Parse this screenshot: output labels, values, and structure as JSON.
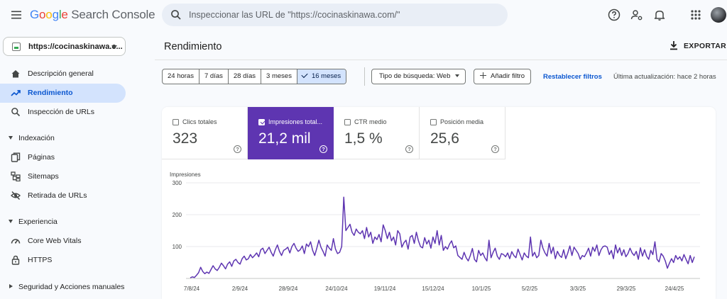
{
  "header": {
    "logo_google": [
      "G",
      "o",
      "o",
      "g",
      "l",
      "e"
    ],
    "logo_rest": " Search Console",
    "search_placeholder": "Inspeccionar las URL de \"https://cocinaskinawa.com/\"",
    "icons": [
      "menu-icon",
      "search-icon",
      "help-icon",
      "manage-users-icon",
      "notifications-icon",
      "apps-grid-icon",
      "avatar"
    ]
  },
  "sidebar": {
    "property": "https://cocinaskinawa.c...",
    "items": [
      {
        "label": "Descripción general",
        "icon": "home-icon",
        "active": false
      },
      {
        "label": "Rendimiento",
        "icon": "trending-icon",
        "active": true
      },
      {
        "label": "Inspección de URLs",
        "icon": "search-icon",
        "active": false
      }
    ],
    "sections": [
      {
        "label": "Indexación",
        "expanded": true,
        "items": [
          {
            "label": "Páginas",
            "icon": "pages-icon"
          },
          {
            "label": "Sitemaps",
            "icon": "sitemap-icon"
          },
          {
            "label": "Retirada de URLs",
            "icon": "eye-off-icon"
          }
        ]
      },
      {
        "label": "Experiencia",
        "expanded": true,
        "items": [
          {
            "label": "Core Web Vitals",
            "icon": "speed-gauge-icon"
          },
          {
            "label": "HTTPS",
            "icon": "lock-icon"
          }
        ]
      },
      {
        "label": "Seguridad y Acciones manuales",
        "expanded": false,
        "items": []
      }
    ]
  },
  "main": {
    "title": "Rendimiento",
    "export_label": "EXPORTAR",
    "date_ranges": [
      {
        "label": "24 horas",
        "selected": false
      },
      {
        "label": "7 días",
        "selected": false
      },
      {
        "label": "28 días",
        "selected": false
      },
      {
        "label": "3 meses",
        "selected": false
      },
      {
        "label": "16 meses",
        "selected": true
      }
    ],
    "search_type_chip": "Tipo de búsqueda: Web",
    "add_filter_chip": "Añadir filtro",
    "reset_filters": "Restablecer filtros",
    "last_update": "Última actualización: hace 2 horas",
    "metrics": [
      {
        "label": "Clics totales",
        "value": "323",
        "selected": false
      },
      {
        "label": "Impresiones total...",
        "value": "21,2 mil",
        "selected": true
      },
      {
        "label": "CTR medio",
        "value": "1,5 %",
        "selected": false
      },
      {
        "label": "Posición media",
        "value": "25,6",
        "selected": false
      }
    ],
    "help_glyph": "?"
  },
  "colors": {
    "accent": "#5e35b1",
    "nav_active_bg": "#d3e3fd",
    "link": "#0b57d0"
  },
  "chart_data": {
    "type": "line",
    "ylabel": "Impresiones",
    "ylim": [
      0,
      300
    ],
    "yticks": [
      0,
      100,
      200,
      300
    ],
    "ytick_labels": [
      "",
      "100",
      "200",
      "300"
    ],
    "xticks": [
      "7/8/24",
      "2/9/24",
      "28/9/24",
      "24/10/24",
      "19/11/24",
      "15/12/24",
      "10/1/25",
      "5/2/25",
      "3/3/25",
      "29/3/25",
      "24/4/25"
    ],
    "grid": true,
    "series": [
      {
        "color": "#5e35b1",
        "values": [
          2,
          5,
          3,
          10,
          18,
          35,
          22,
          15,
          20,
          16,
          28,
          40,
          30,
          25,
          35,
          48,
          40,
          30,
          45,
          52,
          38,
          55,
          60,
          50,
          45,
          62,
          70,
          58,
          62,
          75,
          65,
          72,
          80,
          68,
          90,
          95,
          78,
          88,
          98,
          82,
          70,
          90,
          105,
          85,
          72,
          88,
          92,
          98,
          80,
          100,
          110,
          95,
          85,
          90,
          102,
          78,
          108,
          100,
          115,
          88,
          72,
          95,
          120,
          98,
          85,
          70,
          105,
          95,
          88,
          125,
          92,
          78,
          82,
          100,
          255,
          150,
          160,
          170,
          145,
          135,
          155,
          145,
          140,
          150,
          125,
          160,
          130,
          145,
          110,
          130,
          122,
          138,
          115,
          168,
          150,
          125,
          145,
          118,
          130,
          105,
          150,
          140,
          98,
          112,
          120,
          92,
          130,
          135,
          110,
          145,
          118,
          100,
          96,
          128,
          108,
          120,
          95,
          130,
          110,
          150,
          105,
          135,
          88,
          100,
          92,
          108,
          118,
          96,
          102,
          72,
          66,
          60,
          82,
          65,
          55,
          72,
          94,
          60,
          52,
          88,
          72,
          80,
          65,
          55,
          120,
          65,
          82,
          95,
          70,
          60,
          78,
          75,
          68,
          80,
          62,
          84,
          72,
          65,
          92,
          75,
          58,
          80,
          70,
          65,
          130,
          70,
          82,
          65,
          72,
          120,
          95,
          80,
          70,
          110,
          78,
          98,
          62,
          85,
          72,
          66,
          90,
          62,
          80,
          102,
          72,
          98,
          88,
          78,
          60,
          72,
          68,
          80,
          95,
          70,
          98,
          85,
          105,
          72,
          90,
          100,
          102,
          98,
          75,
          88,
          62,
          105,
          80,
          96,
          72,
          90,
          68,
          78,
          95,
          80,
          72,
          85,
          60,
          96,
          70,
          90,
          70,
          60,
          88,
          75,
          115,
          60,
          52,
          78,
          70,
          55,
          32,
          48,
          62,
          50,
          72,
          60,
          68,
          55,
          75,
          60,
          46,
          72,
          50,
          68
        ]
      }
    ]
  }
}
